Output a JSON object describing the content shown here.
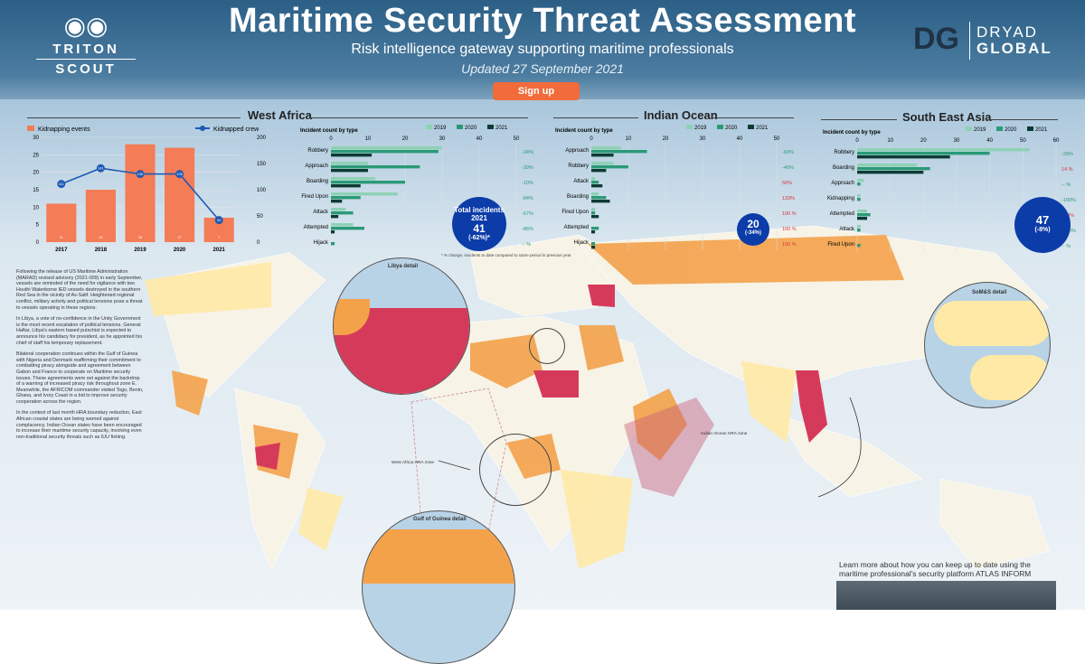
{
  "header": {
    "title": "Maritime Security Threat Assessment",
    "subtitle": "Risk intelligence gateway supporting maritime professionals",
    "updated": "Updated 27 September 2021",
    "signup_label": "Sign up"
  },
  "logos": {
    "left_line1": "TRITON",
    "left_line2": "SCOUT",
    "right_mark": "DG",
    "right_line1": "DRYAD",
    "right_line2": "GLOBAL"
  },
  "colors": {
    "bar_2019": "#8fd1b5",
    "bar_2020": "#2a9a76",
    "bar_2021": "#0d3b33",
    "kidnap": "#f47c56",
    "crew_line": "#1e5ab4",
    "badge": "#0c3ca8"
  },
  "west_africa": {
    "title": "West Africa",
    "combo": {
      "legend_bar": "Kidnapping events",
      "legend_line": "Kidnapped crew",
      "years": [
        "2017",
        "2018",
        "2019",
        "2020",
        "2021"
      ],
      "events": [
        11,
        15,
        28,
        27,
        7
      ],
      "crew": [
        111,
        141,
        130,
        130,
        42
      ],
      "y_left": [
        "0",
        "5",
        "10",
        "15",
        "20",
        "25",
        "30"
      ],
      "y_right": [
        "0",
        "50",
        "100",
        "150",
        "200"
      ]
    },
    "types": {
      "title": "Incident count by type",
      "legend": [
        "2019",
        "2020",
        "2021"
      ],
      "axis": [
        "0",
        "10",
        "20",
        "30",
        "40",
        "50"
      ],
      "max": 50,
      "labels": [
        "Robbery",
        "Approach",
        "Boarding",
        "Fired Upon",
        "Attack",
        "Attempted",
        "Hijack"
      ],
      "v2019": [
        30,
        10,
        12,
        18,
        4,
        6,
        0
      ],
      "v2020": [
        29,
        24,
        20,
        8,
        6,
        9,
        1
      ],
      "v2021": [
        11,
        10,
        8,
        3,
        2,
        1,
        0
      ],
      "changes": [
        "-34%",
        "-39%",
        "-10%",
        "-84%",
        "-67%",
        "-86%",
        "-- %"
      ]
    },
    "total_label": "Total incidents",
    "total_year": "2021",
    "total_value": "41",
    "total_change": "(-62%)*",
    "footnote": "* % change, incidents to date compared to same period in previous year"
  },
  "indian_ocean": {
    "title": "Indian Ocean",
    "types": {
      "title": "Incident count by type",
      "legend": [
        "2019",
        "2020",
        "2021"
      ],
      "axis": [
        "0",
        "10",
        "20",
        "30",
        "40",
        "50"
      ],
      "max": 50,
      "labels": [
        "Approach",
        "Robbery",
        "Attack",
        "Boarding",
        "Fired Upon",
        "Attempted",
        "Hijack"
      ],
      "v2019": [
        8,
        6,
        1,
        2,
        1,
        0,
        0
      ],
      "v2020": [
        15,
        10,
        2,
        4,
        1,
        2,
        1
      ],
      "v2021": [
        6,
        4,
        3,
        5,
        2,
        1,
        1
      ],
      "changes": [
        "-60%",
        "-40%",
        "50%",
        "133%",
        "100 %",
        "100 %",
        "100 %"
      ]
    },
    "total_value": "20",
    "total_change": "(-34%)"
  },
  "south_east_asia": {
    "title": "South East Asia",
    "types": {
      "title": "Incident count by type",
      "legend": [
        "2019",
        "2020",
        "2021"
      ],
      "axis": [
        "0",
        "10",
        "20",
        "30",
        "40",
        "50",
        "60"
      ],
      "max": 60,
      "labels": [
        "Robbery",
        "Boarding",
        "Approach",
        "Kidnapping",
        "Attempted",
        "Attack",
        "Fired Upon"
      ],
      "v2019": [
        52,
        18,
        2,
        1,
        3,
        1,
        0
      ],
      "v2020": [
        40,
        22,
        1,
        1,
        4,
        1,
        1
      ],
      "v2021": [
        28,
        20,
        0,
        0,
        3,
        0,
        0
      ],
      "changes": [
        "-29%",
        "14 %",
        "-- %",
        "-100%",
        "300%",
        "-100%",
        "-- %"
      ]
    },
    "total_value": "47",
    "total_change": "(-8%)"
  },
  "map": {
    "libya_label": "Libya detail",
    "gog_label": "Gulf of Guinea detail",
    "sea_label": "SoM&S detail",
    "wa_hra": "West Africa HRA zone",
    "io_hra": "Indian Ocean HRA zone"
  },
  "narrative": [
    "Following the release of US Maritime Administration (MARAD) revised advisory (2021-009) in early September, vessels are reminded of the need for vigilance with two Houthi Waterborne IED vessels destroyed in the southern Red Sea in the vicinity of As-Salif. Heightened regional conflict, military activity and political tensions pose a threat to vessels operating in these regions.",
    "In Libya, a vote of no-confidence in the Unity Government is the most recent escalation of political tensions. General Haftar, Libya's eastern based putschist is expected to announce his candidacy for president, as he appointed his chief of staff his temporary replacement.",
    "Bilateral cooperation continues within the Gulf of Guinea with Nigeria and Denmark reaffirming their commitment to combatting piracy alongside and agreement between Gabon and France to cooperate on Maritime security issues. These agreements were set against the backdrop of a warning of increased piracy risk throughout zone E. Meanwhile, the AFRICOM commander visited Togo, Benin, Ghana, and Ivory Coast in a bid to improve security cooperation across the region.",
    "In the context of last month HRA boundary reduction, East African coastal states are being warned against complacency. Indian Ocean states have been encouraged to increase their maritime security capacity, involving even non-traditional security threats such as IUU fishing."
  ],
  "learn_more": "Learn more about how you can keep up to date using the maritime professional's security platform ATLAS INFORM"
}
